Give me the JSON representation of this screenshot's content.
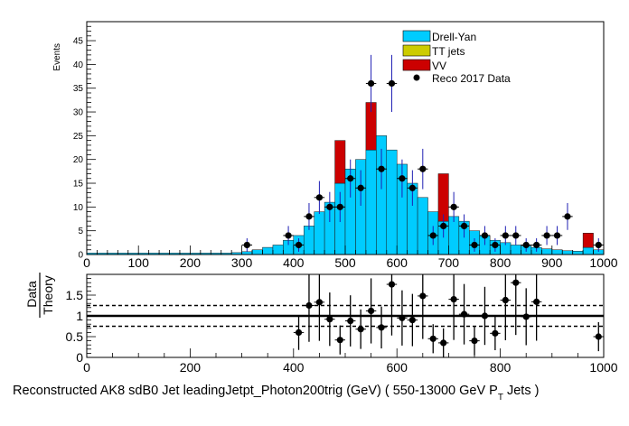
{
  "chart_data": [
    {
      "type": "bar",
      "panel": "main",
      "ylabel": "Events",
      "xlim": [
        0,
        1000
      ],
      "ylim": [
        0,
        49
      ],
      "yticks": [
        0,
        5,
        10,
        15,
        20,
        25,
        30,
        35,
        40,
        45
      ],
      "xticks": [
        0,
        100,
        200,
        300,
        400,
        500,
        600,
        700,
        800,
        900,
        1000
      ],
      "legend_position": "top-right",
      "legend": [
        "Drell-Yan",
        "TT jets",
        "VV",
        "Reco 2017 Data"
      ],
      "bin_width": 20,
      "stack": {
        "bin_low": [
          0,
          20,
          40,
          60,
          80,
          100,
          120,
          140,
          160,
          180,
          200,
          220,
          240,
          260,
          280,
          300,
          320,
          340,
          360,
          380,
          400,
          420,
          440,
          460,
          480,
          500,
          520,
          540,
          560,
          580,
          600,
          620,
          640,
          660,
          680,
          700,
          720,
          740,
          760,
          780,
          800,
          820,
          840,
          860,
          880,
          900,
          920,
          940,
          960,
          980
        ],
        "series": [
          {
            "name": "Drell-Yan",
            "color": "#00ccff",
            "values": [
              0.3,
              0.3,
              0.3,
              0.3,
              0.3,
              0.3,
              0.3,
              0.3,
              0.3,
              0.3,
              0.3,
              0.3,
              0.3,
              0.3,
              0.4,
              0.6,
              1,
              1.5,
              2,
              3,
              4,
              6,
              9,
              11,
              15,
              18,
              20,
              22,
              25,
              22,
              19,
              15,
              12,
              9,
              7,
              8,
              7,
              5,
              4,
              3,
              2.5,
              2,
              1.8,
              1.5,
              1.2,
              1,
              0.8,
              0.7,
              1.5,
              1
            ]
          },
          {
            "name": "TT jets",
            "color": "#cccc00",
            "values": [
              0,
              0,
              0,
              0,
              0,
              0,
              0,
              0,
              0,
              0,
              0,
              0,
              0,
              0,
              0,
              0,
              0,
              0,
              0,
              0,
              0,
              0,
              0,
              0,
              0,
              0,
              0,
              0,
              0,
              0,
              0,
              0,
              0,
              0,
              0,
              0,
              0,
              0,
              0,
              0,
              0,
              0,
              0,
              0,
              0,
              0,
              0,
              0,
              0,
              0
            ]
          },
          {
            "name": "VV",
            "color": "#cc0000",
            "values": [
              0,
              0,
              0,
              0,
              0,
              0,
              0,
              0,
              0,
              0,
              0,
              0,
              0,
              0,
              0,
              0,
              0,
              0,
              0,
              0,
              0,
              0,
              0,
              0,
              9,
              0,
              0,
              10,
              0,
              0,
              0,
              0,
              0,
              0,
              10,
              0,
              0,
              0,
              0,
              0,
              0,
              0,
              0,
              0,
              0,
              0,
              0,
              0,
              3,
              0
            ]
          }
        ]
      },
      "data": {
        "name": "Reco 2017 Data",
        "x": [
          310,
          390,
          410,
          430,
          450,
          470,
          490,
          510,
          530,
          550,
          570,
          590,
          610,
          630,
          650,
          670,
          690,
          710,
          730,
          750,
          770,
          790,
          810,
          830,
          850,
          870,
          890,
          910,
          930,
          990
        ],
        "y": [
          2,
          4,
          2,
          8,
          12,
          10,
          10,
          16,
          14,
          36,
          18,
          36,
          16,
          14,
          18,
          4,
          6,
          10,
          6,
          2,
          4,
          2,
          4,
          4,
          2,
          2,
          4,
          4,
          8,
          2
        ]
      }
    },
    {
      "type": "scatter",
      "panel": "ratio",
      "ylabel_num": "Data",
      "ylabel_den": "Theory",
      "xlabel": "Reconstructed AK8 sdB0 Jet leadingJetpt_Photon200trig (GeV) ( 550-13000 GeV P",
      "xlabel_sub": "T",
      "xlabel_tail": " Jets  )",
      "xlim": [
        0,
        1000
      ],
      "ylim": [
        0,
        2
      ],
      "yticks": [
        "0",
        "0.5",
        "1",
        "1.5"
      ],
      "xticks": [
        0,
        200,
        400,
        600,
        800,
        1000
      ],
      "reference_lines": [
        1.0,
        1.25,
        0.75
      ],
      "x": [
        410,
        430,
        450,
        470,
        490,
        510,
        530,
        550,
        570,
        590,
        610,
        630,
        650,
        670,
        690,
        710,
        730,
        750,
        770,
        790,
        810,
        830,
        850,
        870,
        990
      ],
      "y": [
        0.6,
        1.25,
        1.33,
        0.92,
        0.42,
        0.88,
        0.68,
        1.12,
        0.72,
        1.76,
        0.95,
        0.9,
        1.48,
        0.45,
        0.35,
        1.4,
        1.04,
        0.4,
        1.0,
        0.58,
        1.38,
        1.8,
        0.98,
        1.34,
        0.5
      ]
    }
  ]
}
